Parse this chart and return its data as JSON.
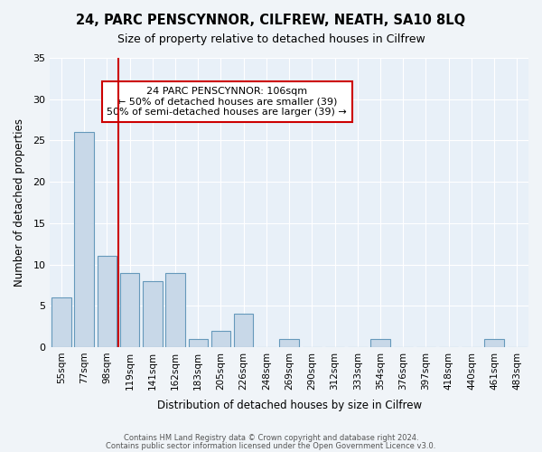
{
  "title": "24, PARC PENSCYNNOR, CILFREW, NEATH, SA10 8LQ",
  "subtitle": "Size of property relative to detached houses in Cilfrew",
  "xlabel": "Distribution of detached houses by size in Cilfrew",
  "ylabel": "Number of detached properties",
  "bar_color": "#c8d8e8",
  "bar_edge_color": "#6699bb",
  "categories": [
    "55sqm",
    "77sqm",
    "98sqm",
    "119sqm",
    "141sqm",
    "162sqm",
    "183sqm",
    "205sqm",
    "226sqm",
    "248sqm",
    "269sqm",
    "290sqm",
    "312sqm",
    "333sqm",
    "354sqm",
    "376sqm",
    "397sqm",
    "418sqm",
    "440sqm",
    "461sqm",
    "483sqm"
  ],
  "values": [
    6,
    26,
    11,
    9,
    8,
    9,
    1,
    2,
    4,
    0,
    1,
    0,
    0,
    0,
    1,
    0,
    0,
    0,
    0,
    1,
    0
  ],
  "ylim": [
    0,
    35
  ],
  "yticks": [
    0,
    5,
    10,
    15,
    20,
    25,
    30,
    35
  ],
  "redline_x": 2.5,
  "annotation_title": "24 PARC PENSCYNNOR: 106sqm",
  "annotation_line1": "← 50% of detached houses are smaller (39)",
  "annotation_line2": "50% of semi-detached houses are larger (39) →",
  "annotation_box_color": "#ffffff",
  "annotation_box_edge": "#cc0000",
  "redline_color": "#cc0000",
  "footer1": "Contains HM Land Registry data © Crown copyright and database right 2024.",
  "footer2": "Contains public sector information licensed under the Open Government Licence v3.0.",
  "background_color": "#f0f4f8",
  "plot_bg_color": "#e8f0f8"
}
